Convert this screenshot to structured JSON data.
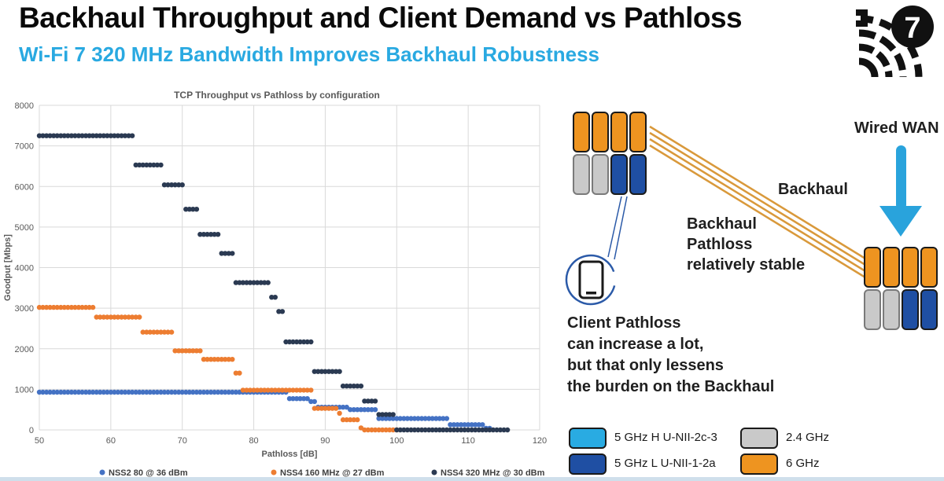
{
  "slide": {
    "title": "Backhaul Throughput and Client Demand vs Pathloss",
    "subtitle": "Wi-Fi 7 320 MHz Bandwidth Improves Backhaul Robustness",
    "accent_color": "#29A9E1",
    "footer_bar_color": "#CFDFEB",
    "logo": {
      "label": "7"
    }
  },
  "chart_data": {
    "type": "scatter",
    "title": "TCP Throughput vs Pathloss by configuration",
    "xlabel": "Pathloss [dB]",
    "ylabel": "Goodput [Mbps]",
    "xlim": [
      50,
      120
    ],
    "ylim": [
      0,
      8000
    ],
    "xticks": [
      50,
      60,
      70,
      80,
      90,
      100,
      110,
      120
    ],
    "yticks": [
      0,
      1000,
      2000,
      3000,
      4000,
      5000,
      6000,
      7000,
      8000
    ],
    "grid": true,
    "legend_position": "bottom",
    "point_step_dB": 0.5,
    "series": [
      {
        "name": "NSS2 80 @ 36 dBm",
        "color": "#4472C4",
        "steps": [
          [
            50,
            84.5,
            930
          ],
          [
            85,
            87.5,
            770
          ],
          [
            88,
            88.5,
            700
          ],
          [
            89,
            93,
            560
          ],
          [
            93.5,
            97,
            500
          ],
          [
            97.5,
            107,
            280
          ],
          [
            107.5,
            112,
            130
          ],
          [
            112.5,
            113,
            40
          ]
        ]
      },
      {
        "name": "NSS4 160 MHz @ 27 dBm",
        "color": "#ED7D31",
        "steps": [
          [
            50,
            57.5,
            3020
          ],
          [
            58,
            64,
            2780
          ],
          [
            64.5,
            68.5,
            2410
          ],
          [
            69,
            72.5,
            1950
          ],
          [
            73,
            77,
            1740
          ],
          [
            77.5,
            78,
            1400
          ],
          [
            78.5,
            88,
            980
          ],
          [
            88.5,
            91.5,
            530
          ],
          [
            92,
            92,
            410
          ],
          [
            92.5,
            94.5,
            250
          ],
          [
            95,
            95,
            50
          ],
          [
            95.5,
            100,
            0
          ]
        ]
      },
      {
        "name": "NSS4 320 MHz @ 30 dBm",
        "color": "#2B3A52",
        "steps": [
          [
            50,
            63,
            7250
          ],
          [
            63.5,
            67,
            6530
          ],
          [
            67.5,
            70,
            6040
          ],
          [
            70.5,
            72,
            5440
          ],
          [
            72.5,
            75,
            4820
          ],
          [
            75.5,
            77,
            4350
          ],
          [
            77.5,
            82,
            3630
          ],
          [
            82.5,
            83,
            3270
          ],
          [
            83.5,
            84,
            2920
          ],
          [
            84.5,
            88,
            2170
          ],
          [
            88.5,
            92,
            1440
          ],
          [
            92.5,
            95,
            1080
          ],
          [
            95.5,
            97,
            710
          ],
          [
            97.5,
            99.5,
            380
          ],
          [
            100,
            115.5,
            0
          ]
        ]
      }
    ]
  },
  "diagram": {
    "labels": {
      "wired_wan": "Wired WAN",
      "backhaul": "Backhaul",
      "backhaul_pathloss": [
        "Backhaul",
        "Pathloss",
        "relatively stable"
      ],
      "client_pathloss": [
        "Client Pathloss",
        "can increase a lot,",
        "but that only lessens",
        "the burden on the Backhaul"
      ]
    },
    "colors": {
      "radio_6ghz": "#EE9420",
      "radio_24ghz": "#C9C9C9",
      "radio_5ghz_h": "#29ABE2",
      "radio_5ghz_l": "#1F4FA3",
      "backhaul_link": "#D9993B",
      "client_link": "#2B5AA8",
      "wan_arrow": "#29A3DC"
    },
    "ap_cells": {
      "top": [
        "6ghz",
        "6ghz",
        "6ghz",
        "6ghz"
      ],
      "bottom": [
        "24ghz",
        "24ghz",
        "5ghz_l",
        "5ghz_l"
      ]
    },
    "legend": [
      {
        "label": "5 GHz H U-NII-2c-3",
        "color_key": "radio_5ghz_h"
      },
      {
        "label": "5 GHz L U-NII-1-2a",
        "color_key": "radio_5ghz_l"
      },
      {
        "label": "2.4 GHz",
        "color_key": "radio_24ghz"
      },
      {
        "label": "6 GHz",
        "color_key": "radio_6ghz"
      }
    ]
  }
}
